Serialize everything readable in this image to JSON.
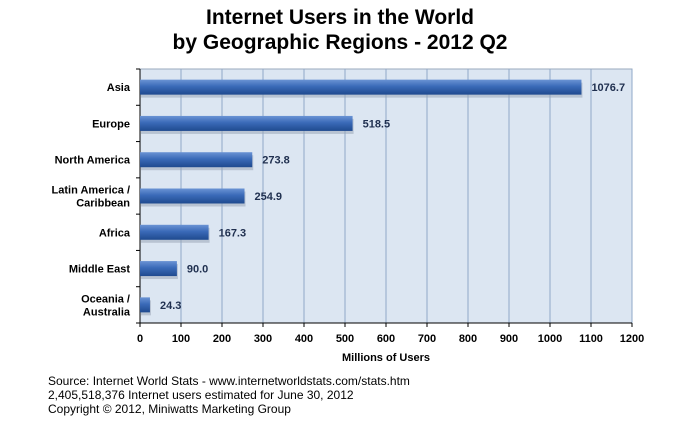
{
  "title_line1": "Internet Users in the World",
  "title_line2": "by Geographic Regions - 2012 Q2",
  "footer": {
    "line1": "Source: Internet World Stats - www.internetworldstats.com/stats.htm",
    "line2": "2,405,518,376 Internet users estimated for June 30, 2012",
    "line3": "Copyright © 2012, Miniwatts Marketing Group"
  },
  "colors": {
    "plot_bg": "#dce6f2",
    "gridline": "#8fa8c8",
    "bar_light": "#6a93d4",
    "bar_mid": "#3a6ab8",
    "bar_dark": "#1f4a8f",
    "label_text": "#1f2f4f"
  },
  "chart_data": {
    "type": "bar",
    "orientation": "horizontal",
    "title": "Internet Users in the World by Geographic Regions - 2012 Q2",
    "xlabel": "Millions of Users",
    "ylabel": "",
    "xlim": [
      0,
      1200
    ],
    "xticks": [
      0,
      100,
      200,
      300,
      400,
      500,
      600,
      700,
      800,
      900,
      1000,
      1100,
      1200
    ],
    "grid": true,
    "categories": [
      [
        "Asia"
      ],
      [
        "Europe"
      ],
      [
        "North America"
      ],
      [
        "Latin America /",
        "Caribbean"
      ],
      [
        "Africa"
      ],
      [
        "Middle East"
      ],
      [
        "Oceania  /",
        "Australia"
      ]
    ],
    "values": [
      1076.7,
      518.5,
      273.8,
      254.9,
      167.3,
      90.0,
      24.3
    ],
    "value_labels": [
      "1076.7",
      "518.5",
      "273.8",
      "254.9",
      "167.3",
      "90.0",
      "24.3"
    ]
  }
}
